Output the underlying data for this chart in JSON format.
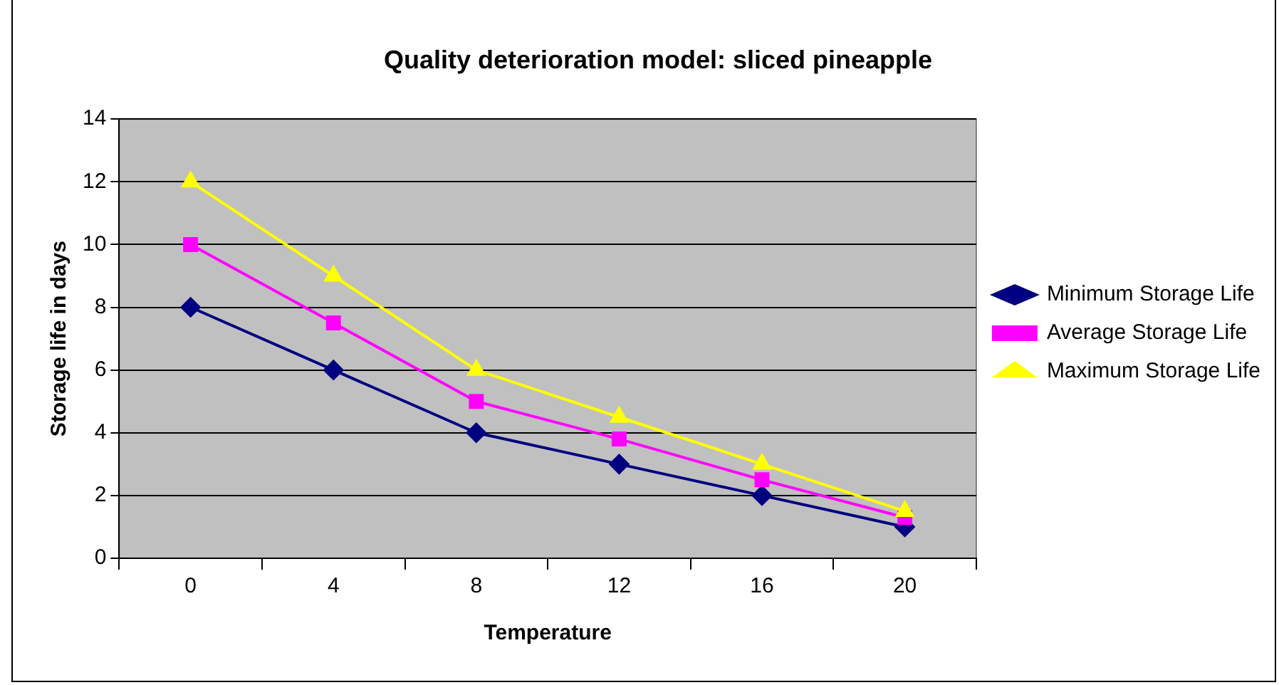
{
  "chart_data": {
    "type": "line",
    "title": "Quality deterioration model: sliced pineapple",
    "xlabel": "Temperature",
    "ylabel": "Storage life in days",
    "categories": [
      "0",
      "4",
      "8",
      "12",
      "16",
      "20"
    ],
    "series": [
      {
        "name": "Minimum Storage Life",
        "color": "#000080",
        "marker": "diamond",
        "values": [
          8,
          6,
          4,
          3,
          2,
          1
        ]
      },
      {
        "name": "Average Storage Life",
        "color": "#ff00ff",
        "marker": "square",
        "values": [
          10,
          7.5,
          5,
          3.8,
          2.5,
          1.3
        ]
      },
      {
        "name": "Maximum Storage Life",
        "color": "#ffff00",
        "marker": "triangle",
        "values": [
          12,
          9,
          6,
          4.5,
          3,
          1.5
        ]
      }
    ],
    "ylim": [
      0,
      14
    ],
    "yticks": [
      0,
      2,
      4,
      6,
      8,
      10,
      12,
      14
    ],
    "grid": "y",
    "legend": "right",
    "line_style": "solid"
  }
}
